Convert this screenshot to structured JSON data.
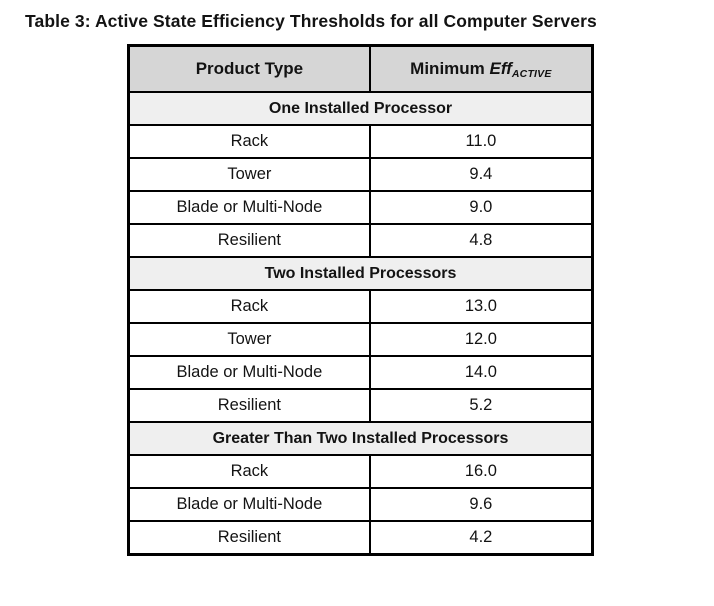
{
  "page": {
    "title": "Table 3: Active State Efficiency Thresholds for all Computer Servers"
  },
  "table": {
    "header": {
      "product_type": "Product Type",
      "minimum_prefix": "Minimum",
      "eff": "Eff",
      "eff_subscript": "ACTIVE"
    },
    "sections": [
      {
        "label": "One Installed Processor",
        "rows": [
          {
            "product": "Rack",
            "value": "11.0"
          },
          {
            "product": "Tower",
            "value": "9.4"
          },
          {
            "product": "Blade or Multi-Node",
            "value": "9.0"
          },
          {
            "product": "Resilient",
            "value": "4.8"
          }
        ]
      },
      {
        "label": "Two Installed Processors",
        "rows": [
          {
            "product": "Rack",
            "value": "13.0"
          },
          {
            "product": "Tower",
            "value": "12.0"
          },
          {
            "product": "Blade or Multi-Node",
            "value": "14.0"
          },
          {
            "product": "Resilient",
            "value": "5.2"
          }
        ]
      },
      {
        "label": "Greater Than Two Installed Processors",
        "rows": [
          {
            "product": "Rack",
            "value": "16.0"
          },
          {
            "product": "Blade or Multi-Node",
            "value": "9.6"
          },
          {
            "product": "Resilient",
            "value": "4.2"
          }
        ]
      }
    ],
    "colors": {
      "header_bg": "#d6d6d6",
      "section_bg": "#efefef",
      "border": "#000000"
    }
  }
}
